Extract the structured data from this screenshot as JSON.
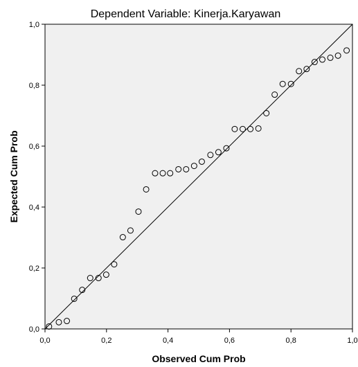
{
  "chart_data": {
    "type": "scatter",
    "title": "Dependent Variable: Kinerja.Karyawan",
    "xlabel": "Observed Cum Prob",
    "ylabel": "Expected Cum Prob",
    "xlim": [
      0,
      1
    ],
    "ylim": [
      0,
      1
    ],
    "x_ticks": [
      "0,0",
      "0,2",
      "0,4",
      "0,6",
      "0,8",
      "1,0"
    ],
    "y_ticks": [
      "0,0",
      "0,2",
      "0,4",
      "0,6",
      "0,8",
      "1,0"
    ],
    "reference_line": [
      [
        0,
        0
      ],
      [
        1,
        1
      ]
    ],
    "grid": false,
    "plot_background": "#f0f0f0",
    "marker_color": "#000000",
    "points": [
      [
        0.013,
        0.008
      ],
      [
        0.045,
        0.022
      ],
      [
        0.071,
        0.026
      ],
      [
        0.095,
        0.099
      ],
      [
        0.121,
        0.128
      ],
      [
        0.147,
        0.167
      ],
      [
        0.174,
        0.167
      ],
      [
        0.199,
        0.178
      ],
      [
        0.225,
        0.212
      ],
      [
        0.253,
        0.301
      ],
      [
        0.278,
        0.323
      ],
      [
        0.304,
        0.385
      ],
      [
        0.329,
        0.458
      ],
      [
        0.358,
        0.511
      ],
      [
        0.383,
        0.511
      ],
      [
        0.407,
        0.511
      ],
      [
        0.434,
        0.524
      ],
      [
        0.459,
        0.524
      ],
      [
        0.485,
        0.535
      ],
      [
        0.51,
        0.549
      ],
      [
        0.538,
        0.571
      ],
      [
        0.564,
        0.58
      ],
      [
        0.59,
        0.593
      ],
      [
        0.617,
        0.656
      ],
      [
        0.643,
        0.656
      ],
      [
        0.668,
        0.656
      ],
      [
        0.694,
        0.658
      ],
      [
        0.72,
        0.708
      ],
      [
        0.747,
        0.769
      ],
      [
        0.773,
        0.804
      ],
      [
        0.8,
        0.804
      ],
      [
        0.826,
        0.846
      ],
      [
        0.851,
        0.853
      ],
      [
        0.877,
        0.876
      ],
      [
        0.902,
        0.884
      ],
      [
        0.928,
        0.89
      ],
      [
        0.953,
        0.897
      ],
      [
        0.981,
        0.914
      ]
    ]
  }
}
